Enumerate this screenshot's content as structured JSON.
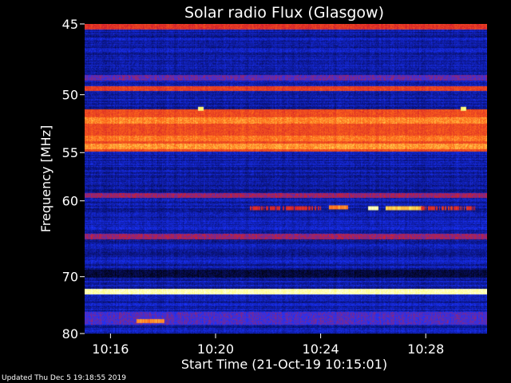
{
  "chart_data": {
    "type": "heatmap",
    "title": "Solar radio Flux (Glasgow)",
    "xlabel": "Start Time (21-Oct-19 10:15:01)",
    "ylabel": "Frequency [MHz]",
    "x_start": "10:15:01",
    "x_end": "10:30:20",
    "x_ticks": [
      "10:16",
      "10:20",
      "10:24",
      "10:28"
    ],
    "ylim": [
      45,
      80
    ],
    "y_ticks": [
      45,
      50,
      55,
      60,
      70,
      80
    ],
    "y_tick_labels": [
      "45",
      "50",
      "55",
      "60",
      "70",
      "80"
    ],
    "y_scale": "reciprocal",
    "colormap": [
      "#000000",
      "#0a1480",
      "#1a33ff",
      "#d31e2a",
      "#ff6a1a",
      "#ffff66",
      "#ffffff"
    ],
    "bands": [
      {
        "f_from": 45.0,
        "f_to": 45.3,
        "level": 0.55
      },
      {
        "f_from": 48.5,
        "f_to": 48.8,
        "level": 0.4
      },
      {
        "f_from": 49.4,
        "f_to": 49.6,
        "level": 0.58
      },
      {
        "f_from": 51.2,
        "f_to": 54.8,
        "level": 0.6
      },
      {
        "f_from": 51.9,
        "f_to": 52.3,
        "level": 0.7
      },
      {
        "f_from": 53.5,
        "f_to": 53.8,
        "level": 0.68
      },
      {
        "f_from": 54.2,
        "f_to": 54.6,
        "level": 0.72
      },
      {
        "f_from": 59.2,
        "f_to": 59.5,
        "level": 0.45
      },
      {
        "f_from": 64.0,
        "f_to": 64.5,
        "level": 0.45
      },
      {
        "f_from": 66.0,
        "f_to": 66.2,
        "level": 0.2
      },
      {
        "f_from": 69.0,
        "f_to": 70.0,
        "level": 0.08
      },
      {
        "f_from": 72.0,
        "f_to": 72.6,
        "level": 0.92
      },
      {
        "f_from": 76.0,
        "f_to": 78.0,
        "level": 0.38
      }
    ],
    "events": [
      {
        "t_from": "10:21:20",
        "t_to": "10:24:00",
        "freq": 60.8,
        "level": 0.52
      },
      {
        "t_from": "10:24:20",
        "t_to": "10:25:00",
        "freq": 60.7,
        "level": 0.7
      },
      {
        "t_from": "10:25:50",
        "t_to": "10:26:10",
        "freq": 60.8,
        "level": 0.92
      },
      {
        "t_from": "10:26:30",
        "t_to": "10:27:50",
        "freq": 60.8,
        "level": 0.78
      },
      {
        "t_from": "10:27:50",
        "t_to": "10:29:50",
        "freq": 60.8,
        "level": 0.55
      },
      {
        "t_from": "10:17:00",
        "t_to": "10:18:00",
        "freq": 77.5,
        "level": 0.7
      },
      {
        "t_from": "10:19:20",
        "t_to": "10:19:30",
        "freq": 51.1,
        "level": 0.85
      },
      {
        "t_from": "10:29:20",
        "t_to": "10:29:30",
        "freq": 51.1,
        "level": 0.85
      }
    ],
    "grid": false,
    "legend": "none"
  },
  "footer": {
    "updated": "Updated Thu Dec  5 19:18:55 2019"
  }
}
